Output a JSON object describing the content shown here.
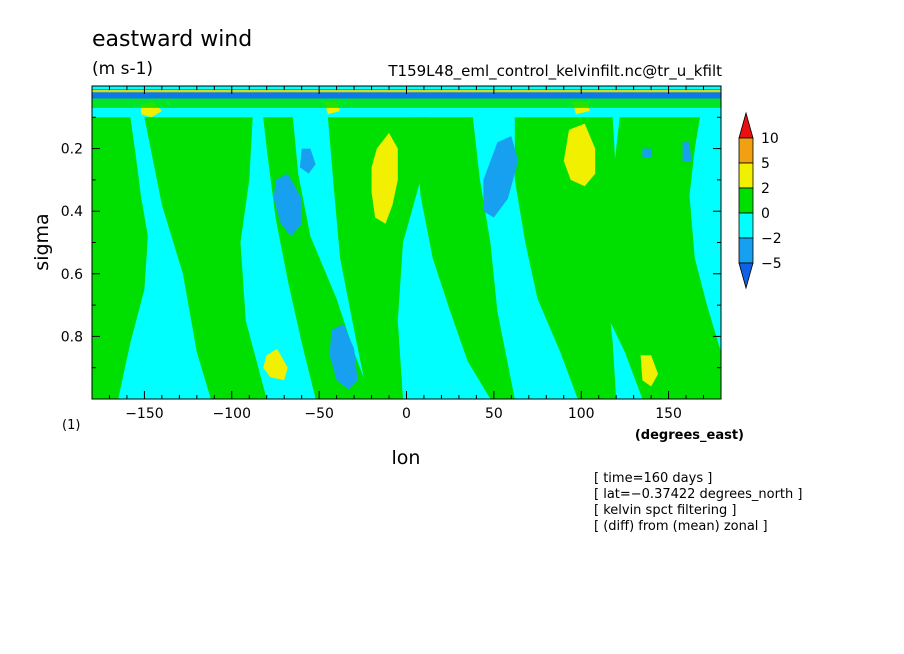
{
  "chart_data": {
    "type": "heatmap",
    "title": "eastward wind",
    "units": "(m s-1)",
    "source": "T159L48_eml_control_kelvinfilt.nc@tr_u_kfilt",
    "xlabel": "lon",
    "ylabel": "sigma",
    "x_units": "(degrees_east)",
    "corner_label": "(1)",
    "xlim": [
      -180,
      180
    ],
    "ylim": [
      1.0,
      0.0
    ],
    "y_reversed": true,
    "x_ticks": [
      -150,
      -100,
      -50,
      0,
      50,
      100,
      150
    ],
    "x_tick_labels": [
      "−150",
      "−100",
      "−50",
      "0",
      "50",
      "100",
      "150"
    ],
    "y_ticks": [
      0.2,
      0.4,
      0.6,
      0.8
    ],
    "y_tick_labels": [
      "0.2",
      "0.4",
      "0.6",
      "0.8"
    ],
    "colorbar": {
      "levels": [
        -5,
        -2,
        0,
        2,
        5,
        10
      ],
      "labels": [
        "10",
        "5",
        "2",
        "0",
        "−2",
        "−5"
      ],
      "colors": [
        "#1060e8",
        "#18a0f0",
        "#00ffff",
        "#00e000",
        "#f0f000",
        "#f0a010",
        "#e81010"
      ],
      "extend": "both"
    },
    "base_color": "#00ffff",
    "regions": [
      {
        "cls": "positive",
        "color": "#00e000",
        "pts": [
          [
            -180,
            1.0
          ],
          [
            -165,
            1.0
          ],
          [
            -158,
            0.82
          ],
          [
            -150,
            0.65
          ],
          [
            -148,
            0.48
          ],
          [
            -152,
            0.35
          ],
          [
            -155,
            0.22
          ],
          [
            -158,
            0.1
          ],
          [
            -180,
            0.1
          ]
        ]
      },
      {
        "cls": "positive",
        "color": "#00e000",
        "pts": [
          [
            -150,
            0.1
          ],
          [
            -140,
            0.38
          ],
          [
            -128,
            0.6
          ],
          [
            -120,
            0.85
          ],
          [
            -112,
            1.0
          ],
          [
            -80,
            1.0
          ],
          [
            -92,
            0.75
          ],
          [
            -95,
            0.5
          ],
          [
            -90,
            0.3
          ],
          [
            -88,
            0.1
          ]
        ]
      },
      {
        "cls": "positive",
        "color": "#00e000",
        "pts": [
          [
            -82,
            0.1
          ],
          [
            -80,
            0.2
          ],
          [
            -75,
            0.42
          ],
          [
            -68,
            0.62
          ],
          [
            -60,
            0.82
          ],
          [
            -52,
            1.0
          ],
          [
            -20,
            1.0
          ],
          [
            -30,
            0.85
          ],
          [
            -40,
            0.68
          ],
          [
            -55,
            0.48
          ],
          [
            -62,
            0.28
          ],
          [
            -65,
            0.1
          ]
        ]
      },
      {
        "cls": "positive",
        "color": "#00e000",
        "pts": [
          [
            -45,
            0.1
          ],
          [
            -42,
            0.3
          ],
          [
            -38,
            0.55
          ],
          [
            -30,
            0.78
          ],
          [
            -22,
            1.0
          ],
          [
            -2,
            1.0
          ],
          [
            -5,
            0.75
          ],
          [
            -2,
            0.5
          ],
          [
            8,
            0.3
          ],
          [
            12,
            0.1
          ]
        ]
      },
      {
        "cls": "positive",
        "color": "#00e000",
        "pts": [
          [
            5,
            0.1
          ],
          [
            8,
            0.35
          ],
          [
            15,
            0.55
          ],
          [
            25,
            0.72
          ],
          [
            35,
            0.88
          ],
          [
            48,
            1.0
          ],
          [
            62,
            1.0
          ],
          [
            52,
            0.72
          ],
          [
            48,
            0.5
          ],
          [
            42,
            0.3
          ],
          [
            38,
            0.1
          ]
        ]
      },
      {
        "cls": "positive",
        "color": "#00e000",
        "pts": [
          [
            62,
            0.1
          ],
          [
            62,
            0.3
          ],
          [
            68,
            0.5
          ],
          [
            75,
            0.68
          ],
          [
            88,
            0.85
          ],
          [
            98,
            1.0
          ],
          [
            120,
            1.0
          ],
          [
            118,
            0.82
          ],
          [
            115,
            0.65
          ],
          [
            118,
            0.45
          ],
          [
            120,
            0.3
          ],
          [
            118,
            0.1
          ]
        ]
      },
      {
        "cls": "positive",
        "color": "#00e000",
        "pts": [
          [
            122,
            0.1
          ],
          [
            118,
            0.3
          ],
          [
            110,
            0.5
          ],
          [
            112,
            0.7
          ],
          [
            125,
            0.85
          ],
          [
            135,
            1.0
          ],
          [
            180,
            1.0
          ],
          [
            180,
            0.85
          ],
          [
            172,
            0.7
          ],
          [
            165,
            0.55
          ],
          [
            162,
            0.35
          ],
          [
            165,
            0.2
          ],
          [
            168,
            0.1
          ]
        ]
      },
      {
        "cls": "negative",
        "color": "#18a0f0",
        "pts": [
          [
            -75,
            0.3
          ],
          [
            -68,
            0.28
          ],
          [
            -60,
            0.36
          ],
          [
            -60,
            0.44
          ],
          [
            -66,
            0.48
          ],
          [
            -72,
            0.44
          ],
          [
            -76,
            0.36
          ]
        ]
      },
      {
        "cls": "negative",
        "color": "#18a0f0",
        "pts": [
          [
            -60,
            0.2
          ],
          [
            -55,
            0.2
          ],
          [
            -52,
            0.25
          ],
          [
            -56,
            0.28
          ],
          [
            -61,
            0.26
          ]
        ]
      },
      {
        "cls": "negative",
        "color": "#18a0f0",
        "pts": [
          [
            -43,
            0.78
          ],
          [
            -36,
            0.76
          ],
          [
            -30,
            0.84
          ],
          [
            -28,
            0.94
          ],
          [
            -33,
            0.97
          ],
          [
            -40,
            0.94
          ],
          [
            -44,
            0.86
          ]
        ]
      },
      {
        "cls": "negative",
        "color": "#18a0f0",
        "pts": [
          [
            52,
            0.18
          ],
          [
            60,
            0.16
          ],
          [
            64,
            0.24
          ],
          [
            58,
            0.36
          ],
          [
            50,
            0.42
          ],
          [
            44,
            0.4
          ],
          [
            44,
            0.3
          ]
        ]
      },
      {
        "cls": "negative",
        "color": "#18a0f0",
        "pts": [
          [
            135,
            0.2
          ],
          [
            140,
            0.2
          ],
          [
            140,
            0.23
          ],
          [
            135,
            0.23
          ]
        ]
      },
      {
        "cls": "negative",
        "color": "#18a0f0",
        "pts": [
          [
            158,
            0.18
          ],
          [
            162,
            0.18
          ],
          [
            163,
            0.24
          ],
          [
            158,
            0.24
          ]
        ]
      },
      {
        "cls": "positive",
        "color": "#f0f000",
        "pts": [
          [
            -17,
            0.2
          ],
          [
            -10,
            0.15
          ],
          [
            -5,
            0.2
          ],
          [
            -5,
            0.3
          ],
          [
            -8,
            0.38
          ],
          [
            -12,
            0.44
          ],
          [
            -18,
            0.42
          ],
          [
            -20,
            0.34
          ],
          [
            -20,
            0.26
          ]
        ]
      },
      {
        "cls": "positive",
        "color": "#f0f000",
        "pts": [
          [
            93,
            0.14
          ],
          [
            102,
            0.12
          ],
          [
            108,
            0.2
          ],
          [
            108,
            0.28
          ],
          [
            102,
            0.32
          ],
          [
            94,
            0.3
          ],
          [
            90,
            0.24
          ]
        ]
      },
      {
        "cls": "positive",
        "color": "#f0f000",
        "pts": [
          [
            -80,
            0.86
          ],
          [
            -74,
            0.84
          ],
          [
            -68,
            0.9
          ],
          [
            -70,
            0.94
          ],
          [
            -78,
            0.93
          ],
          [
            -82,
            0.9
          ]
        ]
      },
      {
        "cls": "positive",
        "color": "#f0f000",
        "pts": [
          [
            134,
            0.86
          ],
          [
            140,
            0.86
          ],
          [
            144,
            0.92
          ],
          [
            140,
            0.96
          ],
          [
            135,
            0.94
          ]
        ]
      },
      {
        "cls": "positive",
        "color": "#f0f000",
        "pts": [
          [
            -152,
            0.06
          ],
          [
            -145,
            0.05
          ],
          [
            -140,
            0.08
          ],
          [
            -146,
            0.1
          ],
          [
            -152,
            0.09
          ]
        ]
      },
      {
        "cls": "positive",
        "color": "#f0f000",
        "pts": [
          [
            -47,
            0.05
          ],
          [
            -40,
            0.05
          ],
          [
            -38,
            0.08
          ],
          [
            -45,
            0.09
          ]
        ]
      },
      {
        "cls": "positive",
        "color": "#f0f000",
        "pts": [
          [
            95,
            0.05
          ],
          [
            103,
            0.05
          ],
          [
            105,
            0.08
          ],
          [
            97,
            0.09
          ]
        ]
      }
    ],
    "top_bands": [
      {
        "color": "#1060e8",
        "y": [
          0.01,
          0.04
        ]
      },
      {
        "color": "#f0f000",
        "y": [
          0.012,
          0.02
        ]
      },
      {
        "color": "#00e000",
        "y": [
          0.04,
          0.07
        ]
      }
    ]
  },
  "info": [
    "[ time=160 days ]",
    "[ lat=−0.37422 degrees_north ]",
    "[ kelvin spct filtering ]",
    "[ (diff) from (mean) zonal ]"
  ]
}
